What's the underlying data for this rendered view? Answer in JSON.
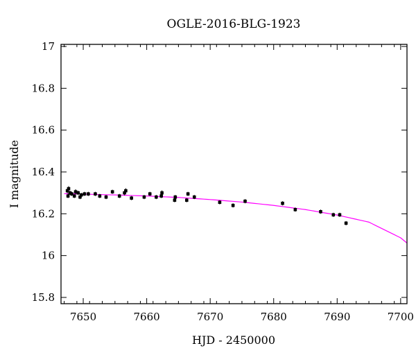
{
  "chart_data": {
    "type": "scatter",
    "title": "OGLE-2016-BLG-1923",
    "xlabel": "HJD - 2450000",
    "ylabel": "I magnitude",
    "xlim": [
      7646.5,
      7701
    ],
    "ylim": [
      17.01,
      15.77
    ],
    "y_inverted": true,
    "grid": false,
    "legend": "none",
    "x_ticks": [
      {
        "value": 7650,
        "label": "7650"
      },
      {
        "value": 7660,
        "label": "7660"
      },
      {
        "value": 7670,
        "label": "7670"
      },
      {
        "value": 7680,
        "label": "7680"
      },
      {
        "value": 7690,
        "label": "7690"
      },
      {
        "value": 7700,
        "label": "7700"
      }
    ],
    "y_ticks": [
      {
        "value": 15.8,
        "label": "15.8"
      },
      {
        "value": 16.0,
        "label": "16"
      },
      {
        "value": 16.2,
        "label": "16.2"
      },
      {
        "value": 16.4,
        "label": "16.4"
      },
      {
        "value": 16.6,
        "label": "16.6"
      },
      {
        "value": 16.8,
        "label": "16.8"
      },
      {
        "value": 17.0,
        "label": "17"
      }
    ],
    "series": [
      {
        "kind": "points",
        "color": "#000000",
        "x": [
          7647.5,
          7647.6,
          7647.7,
          7647.9,
          7648.2,
          7648.6,
          7648.8,
          7649.2,
          7649.5,
          7649.7,
          7650.2,
          7650.8,
          7651.9,
          7652.6,
          7653.6,
          7654.6,
          7655.7,
          7656.5,
          7656.7,
          7657.6,
          7659.6,
          7660.5,
          7661.5,
          7662.3,
          7662.4,
          7664.4,
          7664.5,
          7666.3,
          7666.5,
          7667.5,
          7671.5,
          7673.6,
          7675.5,
          7681.4,
          7683.4,
          7687.4,
          7689.4,
          7690.4,
          7691.4
        ],
        "y": [
          16.31,
          16.285,
          16.32,
          16.3,
          16.295,
          16.285,
          16.305,
          16.3,
          16.28,
          16.29,
          16.295,
          16.295,
          16.295,
          16.285,
          16.28,
          16.305,
          16.285,
          16.3,
          16.31,
          16.275,
          16.28,
          16.295,
          16.28,
          16.285,
          16.3,
          16.265,
          16.28,
          16.265,
          16.295,
          16.28,
          16.255,
          16.24,
          16.26,
          16.25,
          16.22,
          16.21,
          16.195,
          16.195,
          16.155
        ],
        "err": [
          0.012,
          0.01,
          0.012,
          0.01,
          0.01,
          0.01,
          0.012,
          0.01,
          0.01,
          0.01,
          0.01,
          0.01,
          0.01,
          0.01,
          0.01,
          0.01,
          0.01,
          0.012,
          0.012,
          0.01,
          0.01,
          0.01,
          0.01,
          0.01,
          0.012,
          0.01,
          0.01,
          0.01,
          0.01,
          0.01,
          0.01,
          0.01,
          0.01,
          0.01,
          0.01,
          0.01,
          0.01,
          0.01,
          0.01
        ]
      },
      {
        "kind": "model",
        "color": "#ff00ff",
        "x": [
          7647,
          7650,
          7655,
          7660,
          7665,
          7670,
          7675,
          7680,
          7685,
          7690,
          7695,
          7700,
          7701
        ],
        "y": [
          16.296,
          16.294,
          16.29,
          16.285,
          16.278,
          16.268,
          16.256,
          16.24,
          16.22,
          16.194,
          16.16,
          16.085,
          16.06
        ]
      }
    ]
  }
}
